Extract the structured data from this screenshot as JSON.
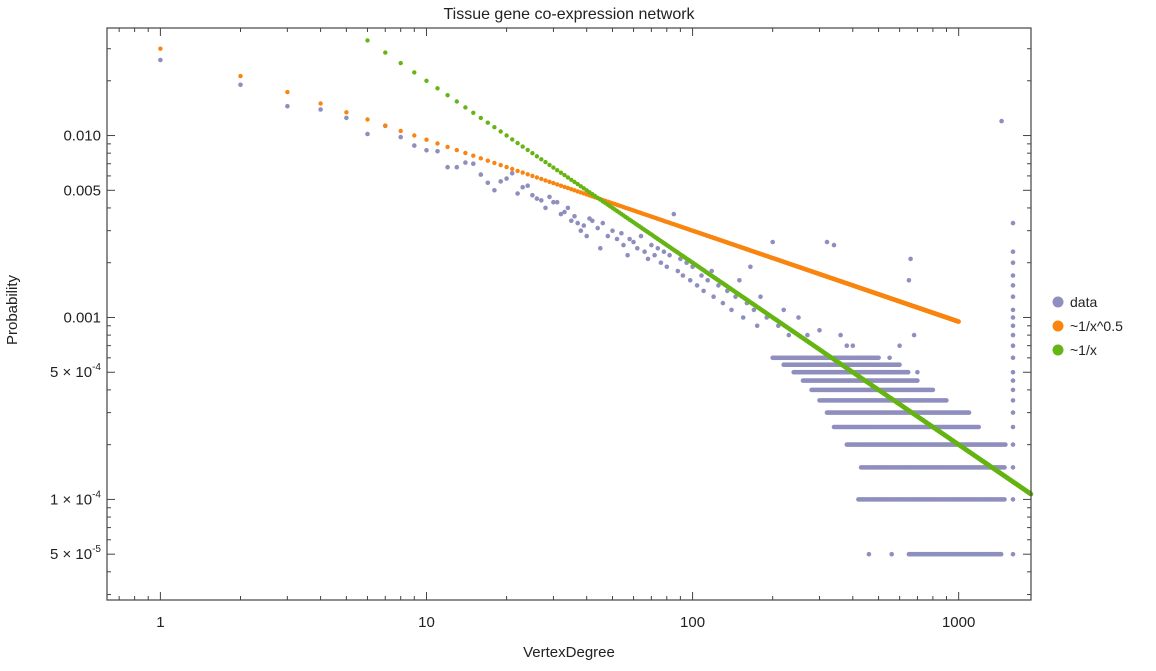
{
  "chart_data": {
    "type": "scatter",
    "title": "Tissue gene co-expression network",
    "xlabel": "VertexDegree",
    "ylabel": "Probability",
    "xscale": "log",
    "yscale": "log",
    "xlim": [
      0.63,
      1870
    ],
    "ylim": [
      2.8e-05,
      0.039
    ],
    "xticks": [
      {
        "value": 1,
        "label": "1"
      },
      {
        "value": 10,
        "label": "10"
      },
      {
        "value": 100,
        "label": "100"
      },
      {
        "value": 1000,
        "label": "1000"
      }
    ],
    "yticks": [
      {
        "value": 0.01,
        "base": "0.010",
        "exp": ""
      },
      {
        "value": 0.005,
        "base": "0.005",
        "exp": ""
      },
      {
        "value": 0.001,
        "base": "0.001",
        "exp": ""
      },
      {
        "value": 0.0005,
        "base": "5 × 10",
        "exp": "-4"
      },
      {
        "value": 0.0001,
        "base": "1 × 10",
        "exp": "-4"
      },
      {
        "value": 5e-05,
        "base": "5 × 10",
        "exp": "-5"
      }
    ],
    "legend": {
      "placement": "right",
      "entries": [
        {
          "label": "data",
          "color": "#8f8fbf"
        },
        {
          "label": "~1/x^0.5",
          "color": "#f98510"
        },
        {
          "label": "~1/x",
          "color": "#66b514"
        }
      ]
    },
    "series": [
      {
        "name": "data",
        "color": "#8f8fbf",
        "points": [
          [
            1,
            0.026
          ],
          [
            2,
            0.019
          ],
          [
            3,
            0.0145
          ],
          [
            4,
            0.0139
          ],
          [
            5,
            0.0125
          ],
          [
            6,
            0.0102
          ],
          [
            7,
            0.0113
          ],
          [
            8,
            0.0098
          ],
          [
            9,
            0.0088
          ],
          [
            10,
            0.0083
          ],
          [
            11,
            0.0082
          ],
          [
            12,
            0.0067
          ],
          [
            13,
            0.0067
          ],
          [
            14,
            0.0071
          ],
          [
            15,
            0.007
          ],
          [
            16,
            0.0061
          ],
          [
            17,
            0.0055
          ],
          [
            18,
            0.005
          ],
          [
            19,
            0.0056
          ],
          [
            20,
            0.0058
          ],
          [
            21,
            0.0062
          ],
          [
            22,
            0.0048
          ],
          [
            23,
            0.0052
          ],
          [
            24,
            0.0053
          ],
          [
            25,
            0.0047
          ],
          [
            26,
            0.0045
          ],
          [
            27,
            0.0044
          ],
          [
            28,
            0.004
          ],
          [
            29,
            0.0046
          ],
          [
            30,
            0.0043
          ],
          [
            31,
            0.0043
          ],
          [
            32,
            0.0037
          ],
          [
            33,
            0.0038
          ],
          [
            34,
            0.004
          ],
          [
            35,
            0.0034
          ],
          [
            36,
            0.0036
          ],
          [
            37,
            0.0033
          ],
          [
            38,
            0.003
          ],
          [
            39,
            0.0032
          ],
          [
            40,
            0.0028
          ],
          [
            41,
            0.0035
          ],
          [
            42,
            0.0034
          ],
          [
            44,
            0.0031
          ],
          [
            45,
            0.0024
          ],
          [
            46,
            0.0033
          ],
          [
            48,
            0.0028
          ],
          [
            50,
            0.003
          ],
          [
            52,
            0.0027
          ],
          [
            54,
            0.0029
          ],
          [
            55,
            0.0025
          ],
          [
            57,
            0.0022
          ],
          [
            58,
            0.0027
          ],
          [
            60,
            0.0026
          ],
          [
            62,
            0.0024
          ],
          [
            64,
            0.0028
          ],
          [
            66,
            0.0023
          ],
          [
            68,
            0.0021
          ],
          [
            70,
            0.0025
          ],
          [
            72,
            0.0022
          ],
          [
            74,
            0.0024
          ],
          [
            76,
            0.002
          ],
          [
            78,
            0.0023
          ],
          [
            80,
            0.0019
          ],
          [
            82,
            0.0022
          ],
          [
            85,
            0.0037
          ],
          [
            88,
            0.0018
          ],
          [
            90,
            0.0021
          ],
          [
            92,
            0.0017
          ],
          [
            95,
            0.002
          ],
          [
            98,
            0.0016
          ],
          [
            100,
            0.0019
          ],
          [
            104,
            0.0015
          ],
          [
            108,
            0.0017
          ],
          [
            110,
            0.0014
          ],
          [
            114,
            0.0016
          ],
          [
            118,
            0.0018
          ],
          [
            120,
            0.0013
          ],
          [
            125,
            0.0015
          ],
          [
            130,
            0.0012
          ],
          [
            135,
            0.0014
          ],
          [
            140,
            0.0011
          ],
          [
            145,
            0.0013
          ],
          [
            150,
            0.0016
          ],
          [
            155,
            0.001
          ],
          [
            160,
            0.0012
          ],
          [
            165,
            0.0019
          ],
          [
            170,
            0.0011
          ],
          [
            175,
            0.0009
          ],
          [
            180,
            0.0013
          ],
          [
            190,
            0.001
          ],
          [
            200,
            0.0026
          ],
          [
            210,
            0.0009
          ],
          [
            220,
            0.0011
          ],
          [
            230,
            0.0008
          ],
          [
            250,
            0.001
          ],
          [
            270,
            0.0008
          ],
          [
            300,
            0.00085
          ],
          [
            320,
            0.0026
          ],
          [
            340,
            0.0025
          ],
          [
            360,
            0.0008
          ],
          [
            380,
            0.0007
          ],
          [
            400,
            0.0007
          ],
          [
            420,
            0.0006
          ],
          [
            450,
            0.0006
          ],
          [
            500,
            0.0006
          ],
          [
            550,
            0.0006
          ],
          [
            600,
            0.0007
          ],
          [
            650,
            0.0016
          ],
          [
            660,
            0.0021
          ],
          [
            680,
            0.0008
          ],
          [
            700,
            0.0005
          ],
          [
            460,
            5e-05
          ],
          [
            560,
            5e-05
          ],
          [
            1450,
            0.012
          ]
        ],
        "bands": [
          {
            "y": 5e-05,
            "x_from": 650,
            "x_to": 1450
          },
          {
            "y": 0.0001,
            "x_from": 420,
            "x_to": 1500
          },
          {
            "y": 0.00015,
            "x_from": 430,
            "x_to": 1500
          },
          {
            "y": 0.0002,
            "x_from": 380,
            "x_to": 1500
          },
          {
            "y": 0.00025,
            "x_from": 340,
            "x_to": 1200
          },
          {
            "y": 0.0003,
            "x_from": 320,
            "x_to": 1100
          },
          {
            "y": 0.00035,
            "x_from": 300,
            "x_to": 900
          },
          {
            "y": 0.0004,
            "x_from": 280,
            "x_to": 800
          },
          {
            "y": 0.00045,
            "x_from": 260,
            "x_to": 700
          },
          {
            "y": 0.0005,
            "x_from": 240,
            "x_to": 650
          },
          {
            "y": 0.00055,
            "x_from": 220,
            "x_to": 600
          },
          {
            "y": 0.0006,
            "x_from": 200,
            "x_to": 500
          }
        ],
        "spike_column": {
          "x": 1600,
          "y_values": [
            5e-05,
            0.0001,
            0.00015,
            0.0002,
            0.00025,
            0.0003,
            0.00035,
            0.0004,
            0.00045,
            0.0005,
            0.0006,
            0.0007,
            0.0008,
            0.0009,
            0.001,
            0.0011,
            0.0013,
            0.0015,
            0.0017,
            0.002,
            0.0023,
            0.0033
          ]
        }
      },
      {
        "name": "~1/x^0.5",
        "color": "#f98510",
        "model": {
          "coefficient": 0.03,
          "exponent": -0.5,
          "x_from": 1,
          "x_to": 1000
        }
      },
      {
        "name": "~1/x",
        "color": "#66b514",
        "model": {
          "coefficient": 0.2,
          "exponent": -1,
          "x_from": 6,
          "x_to": 1870
        }
      }
    ]
  }
}
